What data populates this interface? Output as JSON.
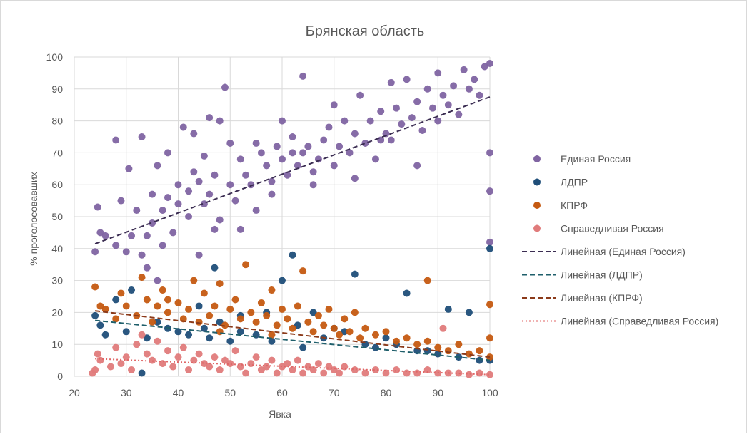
{
  "chart_data": {
    "type": "scatter",
    "title": "Брянская область",
    "xlabel": "Явка",
    "ylabel": "% проголосовавших",
    "xlim": [
      20,
      100
    ],
    "ylim": [
      0,
      100
    ],
    "xticks": [
      "20",
      "30",
      "40",
      "50",
      "60",
      "70",
      "80",
      "90",
      "100"
    ],
    "yticks": [
      "0",
      "10",
      "20",
      "30",
      "40",
      "50",
      "60",
      "70",
      "80",
      "90",
      "100"
    ],
    "grid": true,
    "legend_position": "right",
    "series": [
      {
        "name": "Единая Россия",
        "color": "#8064a2",
        "points": [
          [
            24,
            39
          ],
          [
            24.5,
            53
          ],
          [
            25,
            45
          ],
          [
            26,
            44
          ],
          [
            28,
            41
          ],
          [
            28,
            74
          ],
          [
            29,
            55
          ],
          [
            30,
            39
          ],
          [
            30.5,
            65
          ],
          [
            31,
            44
          ],
          [
            32,
            52
          ],
          [
            33,
            75
          ],
          [
            33,
            38
          ],
          [
            34,
            34
          ],
          [
            34,
            44
          ],
          [
            35,
            57
          ],
          [
            35,
            48
          ],
          [
            36,
            66
          ],
          [
            37,
            52
          ],
          [
            37,
            41
          ],
          [
            38,
            70
          ],
          [
            38,
            56
          ],
          [
            39,
            45
          ],
          [
            40,
            54
          ],
          [
            40,
            60
          ],
          [
            41,
            78
          ],
          [
            42,
            50
          ],
          [
            42,
            58
          ],
          [
            43,
            76
          ],
          [
            43,
            64
          ],
          [
            44,
            61
          ],
          [
            45,
            69
          ],
          [
            45,
            54
          ],
          [
            46,
            81
          ],
          [
            46,
            57
          ],
          [
            47,
            63
          ],
          [
            48,
            49
          ],
          [
            48,
            80
          ],
          [
            49,
            90.5
          ],
          [
            50,
            60
          ],
          [
            50,
            73
          ],
          [
            51,
            55
          ],
          [
            52,
            68
          ],
          [
            53,
            63
          ],
          [
            54,
            60
          ],
          [
            55,
            52
          ],
          [
            56,
            70
          ],
          [
            57,
            66
          ],
          [
            58,
            61
          ],
          [
            59,
            72
          ],
          [
            60,
            68
          ],
          [
            60,
            80
          ],
          [
            61,
            63
          ],
          [
            62,
            75
          ],
          [
            63,
            66
          ],
          [
            64,
            94
          ],
          [
            64,
            70
          ],
          [
            65,
            72
          ],
          [
            66,
            60
          ],
          [
            67,
            68
          ],
          [
            68,
            74
          ],
          [
            69,
            78
          ],
          [
            70,
            85
          ],
          [
            70,
            66
          ],
          [
            71,
            72
          ],
          [
            72,
            80
          ],
          [
            73,
            70
          ],
          [
            74,
            76
          ],
          [
            75,
            88
          ],
          [
            76,
            73
          ],
          [
            77,
            80
          ],
          [
            78,
            68
          ],
          [
            79,
            83
          ],
          [
            80,
            76
          ],
          [
            81,
            92
          ],
          [
            81,
            74
          ],
          [
            82,
            84
          ],
          [
            83,
            79
          ],
          [
            84,
            93
          ],
          [
            85,
            81
          ],
          [
            86,
            86
          ],
          [
            87,
            77
          ],
          [
            88,
            90
          ],
          [
            89,
            84
          ],
          [
            90,
            95
          ],
          [
            90,
            80
          ],
          [
            91,
            88
          ],
          [
            92,
            85
          ],
          [
            93,
            91
          ],
          [
            94,
            82
          ],
          [
            95,
            96
          ],
          [
            96,
            90
          ],
          [
            97,
            93
          ],
          [
            98,
            88
          ],
          [
            99,
            97
          ],
          [
            100,
            98
          ],
          [
            100,
            70
          ],
          [
            100,
            58
          ],
          [
            100,
            42
          ],
          [
            55,
            73
          ],
          [
            44,
            38
          ],
          [
            52,
            46
          ],
          [
            58,
            57
          ],
          [
            66,
            64
          ],
          [
            74,
            62
          ],
          [
            36,
            30
          ],
          [
            47,
            46
          ],
          [
            62,
            70
          ],
          [
            79,
            74
          ],
          [
            86,
            66
          ]
        ]
      },
      {
        "name": "ЛДПР",
        "color": "#1f4e79",
        "points": [
          [
            24,
            19
          ],
          [
            25,
            16
          ],
          [
            26,
            13
          ],
          [
            28,
            24
          ],
          [
            30,
            14
          ],
          [
            31,
            27
          ],
          [
            33,
            1
          ],
          [
            34,
            12
          ],
          [
            36,
            17
          ],
          [
            38,
            15
          ],
          [
            40,
            14
          ],
          [
            42,
            13
          ],
          [
            44,
            22
          ],
          [
            46,
            12
          ],
          [
            47,
            34
          ],
          [
            48,
            17
          ],
          [
            50,
            11
          ],
          [
            52,
            14
          ],
          [
            55,
            13
          ],
          [
            57,
            20
          ],
          [
            60,
            30
          ],
          [
            62,
            38
          ],
          [
            63,
            16
          ],
          [
            66,
            20
          ],
          [
            68,
            12
          ],
          [
            70,
            15
          ],
          [
            72,
            14
          ],
          [
            74,
            32
          ],
          [
            76,
            10
          ],
          [
            78,
            9
          ],
          [
            80,
            12
          ],
          [
            82,
            10
          ],
          [
            84,
            26
          ],
          [
            86,
            8
          ],
          [
            88,
            8
          ],
          [
            90,
            7
          ],
          [
            92,
            21
          ],
          [
            94,
            6
          ],
          [
            96,
            20
          ],
          [
            98,
            5
          ],
          [
            100,
            40
          ],
          [
            100,
            5
          ],
          [
            64,
            9
          ],
          [
            58,
            11
          ],
          [
            52,
            19
          ],
          [
            45,
            15
          ]
        ]
      },
      {
        "name": "КПРФ",
        "color": "#c55a11",
        "points": [
          [
            24,
            28
          ],
          [
            25,
            22
          ],
          [
            26,
            21
          ],
          [
            28,
            18
          ],
          [
            29,
            26
          ],
          [
            30,
            22
          ],
          [
            32,
            19
          ],
          [
            33,
            31
          ],
          [
            34,
            24
          ],
          [
            35,
            17
          ],
          [
            36,
            22
          ],
          [
            37,
            27
          ],
          [
            38,
            20
          ],
          [
            40,
            23
          ],
          [
            41,
            18
          ],
          [
            42,
            21
          ],
          [
            43,
            30
          ],
          [
            44,
            17
          ],
          [
            45,
            26
          ],
          [
            46,
            19
          ],
          [
            47,
            22
          ],
          [
            48,
            29
          ],
          [
            49,
            16
          ],
          [
            50,
            21
          ],
          [
            51,
            24
          ],
          [
            52,
            18
          ],
          [
            53,
            35
          ],
          [
            54,
            20
          ],
          [
            55,
            17
          ],
          [
            56,
            23
          ],
          [
            57,
            19
          ],
          [
            58,
            27
          ],
          [
            59,
            16
          ],
          [
            60,
            21
          ],
          [
            61,
            18
          ],
          [
            62,
            15
          ],
          [
            63,
            22
          ],
          [
            64,
            33
          ],
          [
            65,
            17
          ],
          [
            66,
            14
          ],
          [
            67,
            19
          ],
          [
            68,
            16
          ],
          [
            69,
            21
          ],
          [
            70,
            15
          ],
          [
            71,
            13
          ],
          [
            72,
            18
          ],
          [
            73,
            14
          ],
          [
            74,
            20
          ],
          [
            75,
            12
          ],
          [
            76,
            15
          ],
          [
            78,
            13
          ],
          [
            80,
            14
          ],
          [
            82,
            11
          ],
          [
            84,
            12
          ],
          [
            86,
            10
          ],
          [
            88,
            30
          ],
          [
            88,
            11
          ],
          [
            90,
            9
          ],
          [
            92,
            8
          ],
          [
            94,
            10
          ],
          [
            96,
            7
          ],
          [
            98,
            8
          ],
          [
            100,
            22.5
          ],
          [
            100,
            12
          ],
          [
            100,
            6
          ],
          [
            58,
            13
          ],
          [
            48,
            14
          ],
          [
            38,
            24
          ]
        ]
      },
      {
        "name": "Справедливая Россия",
        "color": "#e07b7b",
        "points": [
          [
            23.5,
            1
          ],
          [
            24,
            2
          ],
          [
            24.5,
            7
          ],
          [
            25,
            5
          ],
          [
            27,
            3
          ],
          [
            28,
            9
          ],
          [
            29,
            4
          ],
          [
            30,
            6
          ],
          [
            31,
            2
          ],
          [
            32,
            10
          ],
          [
            33,
            13
          ],
          [
            34,
            7
          ],
          [
            35,
            5
          ],
          [
            36,
            11
          ],
          [
            37,
            4
          ],
          [
            38,
            8
          ],
          [
            39,
            3
          ],
          [
            40,
            6
          ],
          [
            41,
            9
          ],
          [
            42,
            2
          ],
          [
            43,
            5
          ],
          [
            44,
            7
          ],
          [
            45,
            4
          ],
          [
            46,
            3
          ],
          [
            47,
            6
          ],
          [
            48,
            2
          ],
          [
            49,
            5
          ],
          [
            50,
            4
          ],
          [
            51,
            8
          ],
          [
            52,
            3
          ],
          [
            53,
            1
          ],
          [
            54,
            4
          ],
          [
            55,
            6
          ],
          [
            56,
            2
          ],
          [
            57,
            3
          ],
          [
            58,
            5
          ],
          [
            59,
            1
          ],
          [
            60,
            3
          ],
          [
            61,
            4
          ],
          [
            62,
            2
          ],
          [
            63,
            5
          ],
          [
            64,
            1
          ],
          [
            65,
            3
          ],
          [
            66,
            2
          ],
          [
            67,
            4
          ],
          [
            68,
            1
          ],
          [
            69,
            3
          ],
          [
            70,
            2
          ],
          [
            71,
            1
          ],
          [
            72,
            3
          ],
          [
            74,
            2
          ],
          [
            76,
            1
          ],
          [
            78,
            2
          ],
          [
            80,
            1
          ],
          [
            82,
            2
          ],
          [
            84,
            1
          ],
          [
            86,
            1
          ],
          [
            88,
            2
          ],
          [
            90,
            1
          ],
          [
            91,
            15
          ],
          [
            92,
            1
          ],
          [
            94,
            1
          ],
          [
            96,
            0.5
          ],
          [
            98,
            1
          ],
          [
            100,
            0.5
          ]
        ]
      }
    ],
    "trendlines": [
      {
        "name": "Линейная (Единая Россия)",
        "color": "#3b2d52",
        "style": "dashed",
        "from": [
          24,
          41.5
        ],
        "to": [
          100,
          87.5
        ]
      },
      {
        "name": "Линейная (ЛДПР)",
        "color": "#1f5f6b",
        "style": "dashed",
        "from": [
          24,
          17.5
        ],
        "to": [
          100,
          5
        ]
      },
      {
        "name": "Линейная (КПРФ)",
        "color": "#8b3a1a",
        "style": "dashed",
        "from": [
          24,
          20.5
        ],
        "to": [
          100,
          6
        ]
      },
      {
        "name": "Линейная (Справедливая Россия)",
        "color": "#e06666",
        "style": "dotted",
        "from": [
          24,
          5.5
        ],
        "to": [
          100,
          0.5
        ]
      }
    ]
  }
}
